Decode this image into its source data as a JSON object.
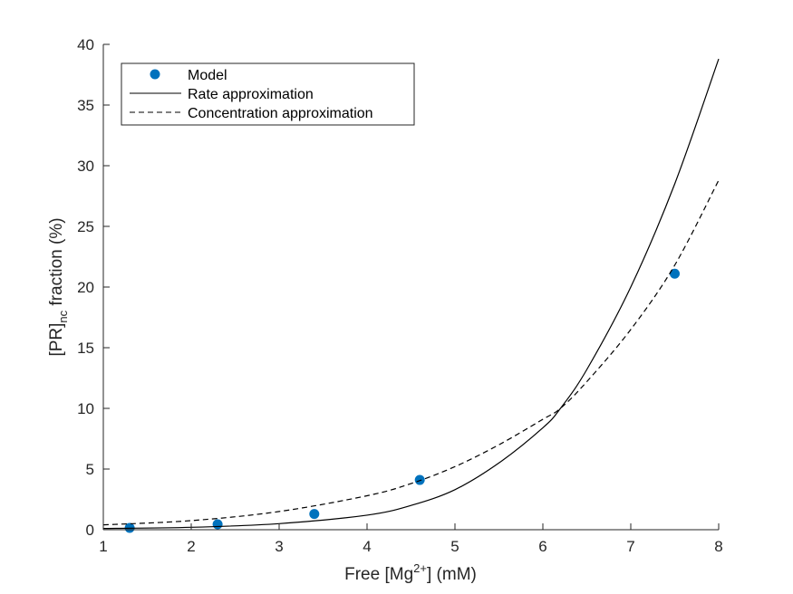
{
  "chart_data": {
    "type": "scatter",
    "title": "",
    "xlabel": {
      "prefix": "Free [Mg",
      "sup": "2+",
      "suffix": "] (mM)"
    },
    "ylabel": {
      "prefix": "[PR]",
      "sub": "nc",
      "suffix": " fraction (%)"
    },
    "xlim": [
      1,
      8
    ],
    "ylim": [
      0,
      40
    ],
    "xticks": [
      1,
      2,
      3,
      4,
      5,
      6,
      7,
      8
    ],
    "yticks": [
      0,
      5,
      10,
      15,
      20,
      25,
      30,
      35,
      40
    ],
    "grid": false,
    "legend_position": "top-left",
    "series": [
      {
        "name": "Model",
        "kind": "markers",
        "color": "#0072BD",
        "x": [
          1.3,
          2.3,
          3.4,
          4.6,
          7.5
        ],
        "y": [
          0.15,
          0.45,
          1.3,
          4.1,
          21.1
        ]
      },
      {
        "name": "Rate approximation",
        "kind": "solid-line",
        "color": "#000000",
        "x": [
          1.0,
          2.0,
          3.0,
          4.0,
          4.5,
          5.0,
          5.5,
          6.0,
          6.2,
          6.5,
          7.0,
          7.5,
          8.0
        ],
        "y": [
          0.1,
          0.2,
          0.5,
          1.2,
          2.0,
          3.3,
          5.5,
          8.4,
          10.0,
          13.2,
          20.0,
          28.5,
          38.8
        ]
      },
      {
        "name": "Concentration approximation",
        "kind": "dashed-line",
        "color": "#000000",
        "x": [
          1.0,
          2.0,
          3.0,
          4.0,
          4.5,
          5.0,
          5.5,
          6.0,
          6.2,
          6.5,
          7.0,
          7.5,
          8.0
        ],
        "y": [
          0.4,
          0.75,
          1.5,
          2.8,
          3.8,
          5.2,
          7.0,
          9.1,
          10.0,
          12.2,
          16.5,
          21.8,
          28.8
        ]
      }
    ]
  }
}
